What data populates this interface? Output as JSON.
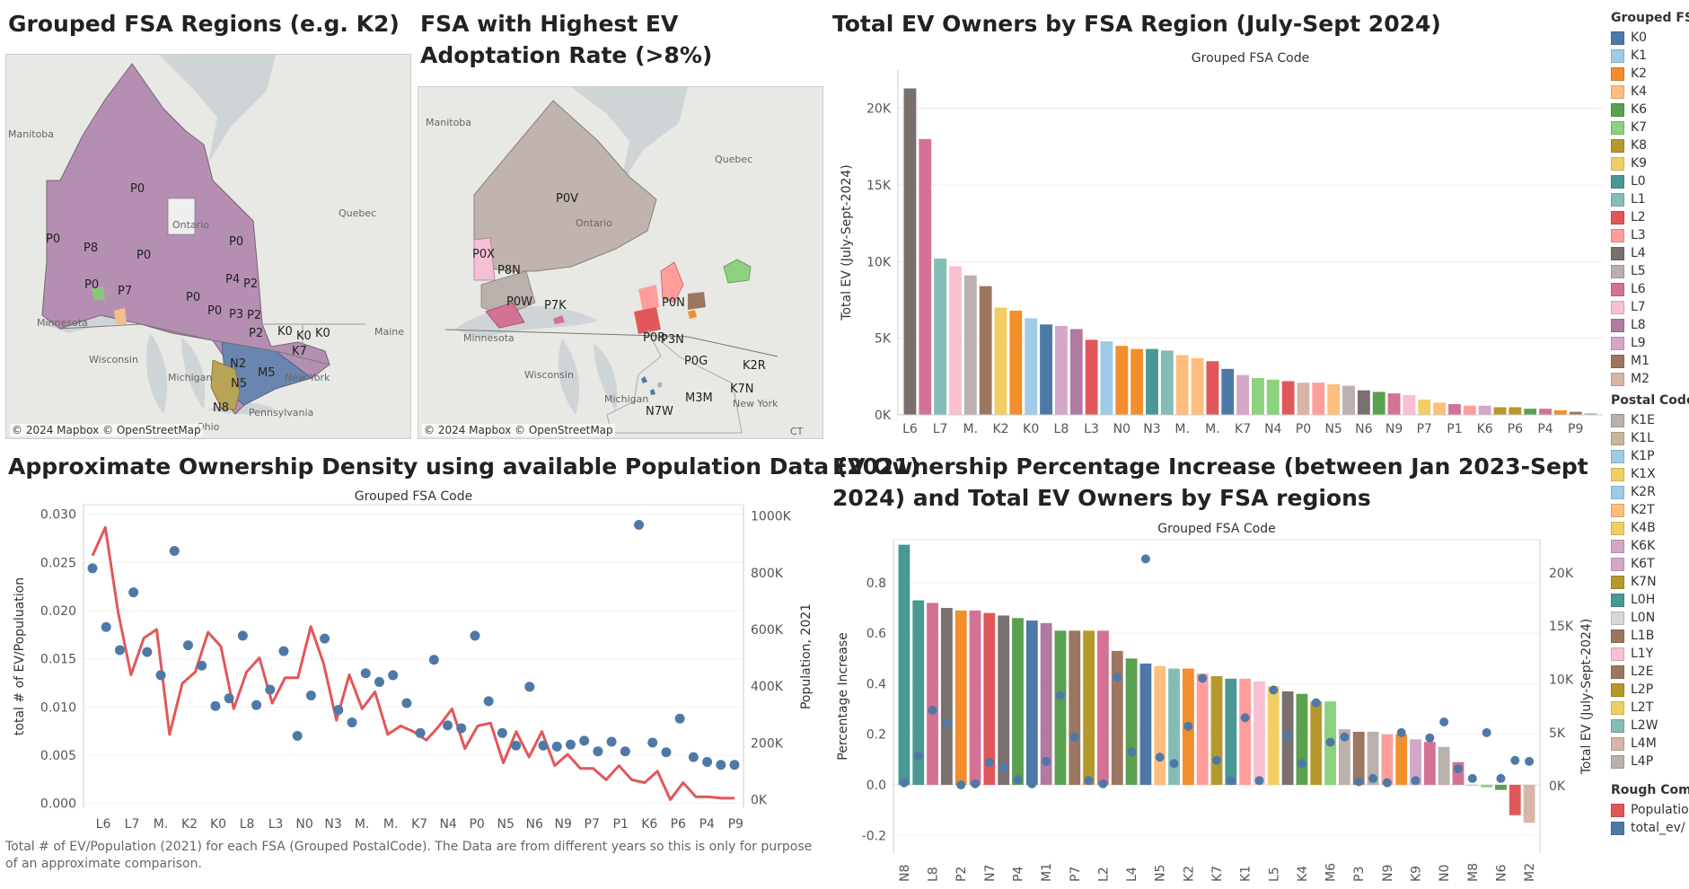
{
  "titles": {
    "map1": "Grouped FSA Regions (e.g. K2)",
    "map2": "FSA with Highest EV Adoptation Rate (>8%)",
    "bar": "Total EV Owners by FSA Region (July-Sept 2024)",
    "density": "Approximate Ownership Density using available Population Data (2021)",
    "increase": "EV Ownership Percentage Increase (between Jan 2023-Sept 2024) and Total EV Owners by FSA regions"
  },
  "maps": {
    "copyright": "© 2024 Mapbox © OpenStreetMap",
    "map1_labels": [
      "P0",
      "P0",
      "P8",
      "P0",
      "P0",
      "P7",
      "P0",
      "P4",
      "P2",
      "P0",
      "P0",
      "P3",
      "P2",
      "P2",
      "K0",
      "K0",
      "K0",
      "K7",
      "N2",
      "N5",
      "M5",
      "N8"
    ],
    "map2_labels": [
      "P0V",
      "P0X",
      "P8N",
      "P0W",
      "P7K",
      "P0N",
      "P0R",
      "P3N",
      "P0G",
      "K2R",
      "K7N",
      "M3M",
      "N7W"
    ],
    "place_labels": [
      "Manitoba",
      "Quebec",
      "Ontario",
      "Minnesota",
      "Wisconsin",
      "Michigan",
      "New York",
      "Maine",
      "Pennsylvania",
      "Ohio",
      "CT"
    ]
  },
  "note": "Total # of EV/Population (2021) for each FSA (Grouped PostalCode).  The Data are from different years so this is only for purpose of an approximate comparison.",
  "legend": {
    "grouped_title": "Grouped FSA",
    "grouped": [
      {
        "label": "K0",
        "color": "#4e79a7"
      },
      {
        "label": "K1",
        "color": "#a0cbe8"
      },
      {
        "label": "K2",
        "color": "#f28e2b"
      },
      {
        "label": "K4",
        "color": "#ffbe7d"
      },
      {
        "label": "K6",
        "color": "#59a14f"
      },
      {
        "label": "K7",
        "color": "#8cd17d"
      },
      {
        "label": "K8",
        "color": "#b6992d"
      },
      {
        "label": "K9",
        "color": "#f1ce63"
      },
      {
        "label": "L0",
        "color": "#499894"
      },
      {
        "label": "L1",
        "color": "#86bcb6"
      },
      {
        "label": "L2",
        "color": "#e15759"
      },
      {
        "label": "L3",
        "color": "#ff9d9a"
      },
      {
        "label": "L4",
        "color": "#79706e"
      },
      {
        "label": "L5",
        "color": "#bab0ac"
      },
      {
        "label": "L6",
        "color": "#d37295"
      },
      {
        "label": "L7",
        "color": "#fabfd2"
      },
      {
        "label": "L8",
        "color": "#b07aa1"
      },
      {
        "label": "L9",
        "color": "#d4a6c8"
      },
      {
        "label": "M1",
        "color": "#9d7660"
      },
      {
        "label": "M2",
        "color": "#d7b5a6"
      }
    ],
    "postal_title": "Postal Code",
    "postal": [
      {
        "label": "K1E",
        "color": "#bab0ac"
      },
      {
        "label": "K1L",
        "color": "#c9b79c"
      },
      {
        "label": "K1P",
        "color": "#a0cbe8"
      },
      {
        "label": "K1X",
        "color": "#f1ce63"
      },
      {
        "label": "K2R",
        "color": "#a0cbe8"
      },
      {
        "label": "K2T",
        "color": "#ffbe7d"
      },
      {
        "label": "K4B",
        "color": "#f1ce63"
      },
      {
        "label": "K6K",
        "color": "#d4a6c8"
      },
      {
        "label": "K6T",
        "color": "#d4a6c8"
      },
      {
        "label": "K7N",
        "color": "#b6992d"
      },
      {
        "label": "L0H",
        "color": "#499894"
      },
      {
        "label": "L0N",
        "color": "#d7d7d7"
      },
      {
        "label": "L1B",
        "color": "#9d7660"
      },
      {
        "label": "L1Y",
        "color": "#fabfd2"
      },
      {
        "label": "L2E",
        "color": "#9d7660"
      },
      {
        "label": "L2P",
        "color": "#b6992d"
      },
      {
        "label": "L2T",
        "color": "#f1ce63"
      },
      {
        "label": "L2W",
        "color": "#86bcb6"
      },
      {
        "label": "L4M",
        "color": "#d7b5a6"
      },
      {
        "label": "L4P",
        "color": "#bab0ac"
      }
    ],
    "rough_title": "Rough Comp",
    "rough": [
      {
        "label": "Population",
        "color": "#e15759"
      },
      {
        "label": "total_ev/",
        "color": "#4e79a7"
      }
    ]
  },
  "chart_data": [
    {
      "type": "bar",
      "title": "Total EV Owners by FSA Region (July-Sept 2024)",
      "header": "Grouped FSA Code",
      "ylabel": "Total EV (July-Sept-2024)",
      "ylim": [
        0,
        22500
      ],
      "yticks": [
        0,
        5000,
        10000,
        15000,
        20000
      ],
      "ytick_labels": [
        "0K",
        "5K",
        "10K",
        "15K",
        "20K"
      ],
      "grid": true,
      "shown_tick_labels": [
        "L6",
        "L7",
        "M.",
        "K2",
        "K0",
        "L8",
        "L3",
        "N0",
        "N3",
        "M.",
        "M.",
        "K7",
        "N4",
        "P0",
        "N5",
        "N6",
        "N9",
        "P7",
        "P1",
        "K6",
        "P6",
        "P4",
        "P9"
      ],
      "categories": [
        "L4",
        "L6",
        "L1",
        "L7",
        "L5",
        "M1",
        "K9",
        "K2",
        "K1",
        "K0",
        "L9",
        "L8",
        "L2",
        "L3",
        "K4",
        "N0",
        "L0",
        "N3",
        "M2",
        "M.",
        "N2",
        "M.",
        "N1",
        "K7",
        "N7",
        "N4",
        "N8",
        "P0",
        "P3",
        "N5",
        "M5",
        "N6",
        "N2",
        "N9",
        "K8",
        "P7",
        "L2",
        "P1",
        "P5",
        "K6",
        "P8",
        "P6",
        "P2",
        "P4",
        "P3",
        "P9"
      ],
      "colors": [
        "#79706e",
        "#d37295",
        "#86bcb6",
        "#fabfd2",
        "#bab0ac",
        "#9d7660",
        "#f1ce63",
        "#f28e2b",
        "#a0cbe8",
        "#4e79a7",
        "#d4a6c8",
        "#b07aa1",
        "#e15759",
        "#a0cbe8",
        "#f28e2b",
        "#f28e2b",
        "#499894",
        "#86bcb6",
        "#ffbe7d",
        "#ffbe7d",
        "#e15759",
        "#4e79a7",
        "#d4a6c8",
        "#8cd17d",
        "#8cd17d",
        "#e15759",
        "#d7b5a6",
        "#ff9d9a",
        "#ffbe7d",
        "#bab0ac",
        "#79706e",
        "#59a14f",
        "#d37295",
        "#fabfd2",
        "#f1ce63",
        "#ffbe7d",
        "#d37295",
        "#ff9d9a",
        "#d4a6c8",
        "#b6992d",
        "#b6992d",
        "#59a14f",
        "#d37295",
        "#f28e2b",
        "#9d7660",
        "#86bcb6"
      ],
      "values": [
        21300,
        18000,
        10200,
        9700,
        9100,
        8400,
        7000,
        6800,
        6300,
        5900,
        5800,
        5600,
        4900,
        4800,
        4500,
        4300,
        4300,
        4200,
        3900,
        3700,
        3500,
        3000,
        2600,
        2400,
        2300,
        2200,
        2100,
        2100,
        2000,
        1900,
        1600,
        1500,
        1400,
        1300,
        1000,
        800,
        700,
        600,
        600,
        500,
        500,
        400,
        400,
        300,
        200,
        100
      ]
    },
    {
      "type": "line",
      "title": "Approximate Ownership Density using available Population Data (2021)",
      "header": "Grouped FSA Code",
      "ylabel": "total # of EV/Populuation",
      "y2label": "Population, 2021",
      "ylim": [
        -0.0005,
        0.031
      ],
      "y2lim": [
        -30000,
        1040000
      ],
      "yticks": [
        0.0,
        0.005,
        0.01,
        0.015,
        0.02,
        0.025,
        0.03
      ],
      "ytick_labels": [
        "0.000",
        "0.005",
        "0.010",
        "0.015",
        "0.020",
        "0.025",
        "0.030"
      ],
      "y2ticks": [
        0,
        200000,
        400000,
        600000,
        800000,
        1000000
      ],
      "y2tick_labels": [
        "0K",
        "200K",
        "400K",
        "600K",
        "800K",
        "1000K"
      ],
      "shown_tick_labels": [
        "L6",
        "L7",
        "M.",
        "K2",
        "K0",
        "L8",
        "L3",
        "N0",
        "N3",
        "M.",
        "M.",
        "K7",
        "N4",
        "P0",
        "N5",
        "N6",
        "N9",
        "P7",
        "P1",
        "K6",
        "P6",
        "P4",
        "P9"
      ],
      "series": [
        {
          "name": "Population",
          "axis": "right",
          "color": "#e15759",
          "marker": "line",
          "values": [
            860000,
            960000,
            660000,
            440000,
            570000,
            600000,
            230000,
            410000,
            450000,
            590000,
            540000,
            320000,
            450000,
            500000,
            340000,
            430000,
            430000,
            610000,
            480000,
            280000,
            440000,
            320000,
            380000,
            230000,
            260000,
            240000,
            210000,
            260000,
            320000,
            180000,
            260000,
            270000,
            130000,
            240000,
            150000,
            240000,
            120000,
            160000,
            110000,
            110000,
            70000,
            120000,
            70000,
            60000,
            100000,
            0,
            60000,
            10000,
            10000,
            5000,
            5000
          ]
        },
        {
          "name": "total_ev/",
          "axis": "left",
          "color": "#4e79a7",
          "marker": "circle",
          "values": [
            0.0244,
            0.0183,
            0.0159,
            0.0219,
            0.0157,
            0.0133,
            0.0262,
            0.0164,
            0.0143,
            0.0101,
            0.0109,
            0.0174,
            0.0102,
            0.0118,
            0.0158,
            0.007,
            0.0112,
            0.0171,
            0.0097,
            0.0084,
            0.0135,
            0.0126,
            0.0133,
            0.0104,
            0.0073,
            0.0149,
            0.0081,
            0.0078,
            0.0174,
            0.0106,
            0.0073,
            0.006,
            0.0121,
            0.006,
            0.0059,
            0.0061,
            0.0065,
            0.0054,
            0.0064,
            0.0054,
            0.0289,
            0.0063,
            0.0053,
            0.0088,
            0.0048,
            0.0043,
            0.004,
            0.004
          ]
        }
      ]
    },
    {
      "type": "bar",
      "title": "EV Ownership Percentage Increase (between Jan 2023-Sept 2024) and Total EV Owners by FSA regions",
      "header": "Grouped FSA Code",
      "ylabel": "Percentage Increase",
      "y2label": "Total EV (July-Sept-2024)",
      "ylim": [
        -0.27,
        0.97
      ],
      "yticks": [
        -0.2,
        0.0,
        0.2,
        0.4,
        0.6,
        0.8
      ],
      "ytick_labels": [
        "-0.2",
        "0.0",
        "0.2",
        "0.4",
        "0.6",
        "0.8"
      ],
      "y2lim": [
        -6300,
        23100
      ],
      "y2ticks": [
        0,
        5000,
        10000,
        15000,
        20000
      ],
      "y2tick_labels": [
        "0K",
        "5K",
        "10K",
        "15K",
        "20K"
      ],
      "shown_tick_labels": [
        "N8",
        "L8",
        "P2",
        "N7",
        "P4",
        "M1",
        "P7",
        "L2",
        "L4",
        "N5",
        "K2",
        "K7",
        "K1",
        "L5",
        "K4",
        "M6",
        "P3",
        "N9",
        "K9",
        "N0",
        "M8",
        "N6",
        "M2"
      ],
      "categories": [
        "N8",
        "K8",
        "L8",
        "N8",
        "P2",
        "P1",
        "N7",
        "L3",
        "P4",
        "K0",
        "M1",
        "K6",
        "P7",
        "M.",
        "L2",
        "L0",
        "L4",
        "L1",
        "N5",
        "L9",
        "K2",
        "N2",
        "K7",
        "N4",
        "K1",
        "L7",
        "L5",
        "K6",
        "K4",
        "M5",
        "M6",
        "P8",
        "P3",
        "P7",
        "N9",
        "P6",
        "K9",
        "P9",
        "N0",
        "L8",
        "M8",
        "N3",
        "N6",
        "K2",
        "M2"
      ],
      "series": [
        {
          "name": "Percentage Increase",
          "type": "bar",
          "colors": [
            "#499894",
            "#499894",
            "#d37295",
            "#79706e",
            "#f28e2b",
            "#d37295",
            "#e15759",
            "#79706e",
            "#59a14f",
            "#4e79a7",
            "#b07aa1",
            "#59a14f",
            "#9d7660",
            "#b6992d",
            "#d37295",
            "#9d7660",
            "#59a14f",
            "#4e79a7",
            "#ffbe7d",
            "#86bcb6",
            "#f28e2b",
            "#ff9d9a",
            "#b6992d",
            "#499894",
            "#ff9d9a",
            "#fabfd2",
            "#f1ce63",
            "#79706e",
            "#59a14f",
            "#b6992d",
            "#8cd17d",
            "#bab0ac",
            "#9d7660",
            "#bab0ac",
            "#ff9d9a",
            "#f28e2b",
            "#d4a6c8",
            "#d37295",
            "#bab0ac",
            "#d37295",
            "#a0cbe8",
            "#8cd17d",
            "#59a14f",
            "#e15759",
            "#d7b5a6"
          ],
          "values": [
            0.95,
            0.73,
            0.72,
            0.7,
            0.69,
            0.69,
            0.68,
            0.67,
            0.66,
            0.65,
            0.64,
            0.61,
            0.61,
            0.61,
            0.61,
            0.53,
            0.5,
            0.48,
            0.47,
            0.46,
            0.46,
            0.44,
            0.43,
            0.42,
            0.42,
            0.41,
            0.39,
            0.37,
            0.36,
            0.33,
            0.33,
            0.22,
            0.21,
            0.21,
            0.2,
            0.2,
            0.18,
            0.17,
            0.15,
            0.09,
            0.0,
            -0.01,
            -0.02,
            -0.12,
            -0.15
          ]
        },
        {
          "name": "Total EV (July-Sept-2024)",
          "type": "scatter",
          "color": "#4e79a7",
          "values": [
            300,
            2800,
            7100,
            5900,
            100,
            200,
            2200,
            1700,
            600,
            200,
            2300,
            8500,
            4600,
            500,
            200,
            10200,
            3200,
            21300,
            2700,
            2100,
            5600,
            10100,
            2400,
            500,
            6400,
            500,
            9000,
            4700,
            2100,
            7800,
            4100,
            4600,
            400,
            700,
            300,
            5000,
            500,
            4500,
            6000,
            1600,
            700,
            5000,
            700,
            2400,
            2300
          ]
        }
      ]
    }
  ]
}
